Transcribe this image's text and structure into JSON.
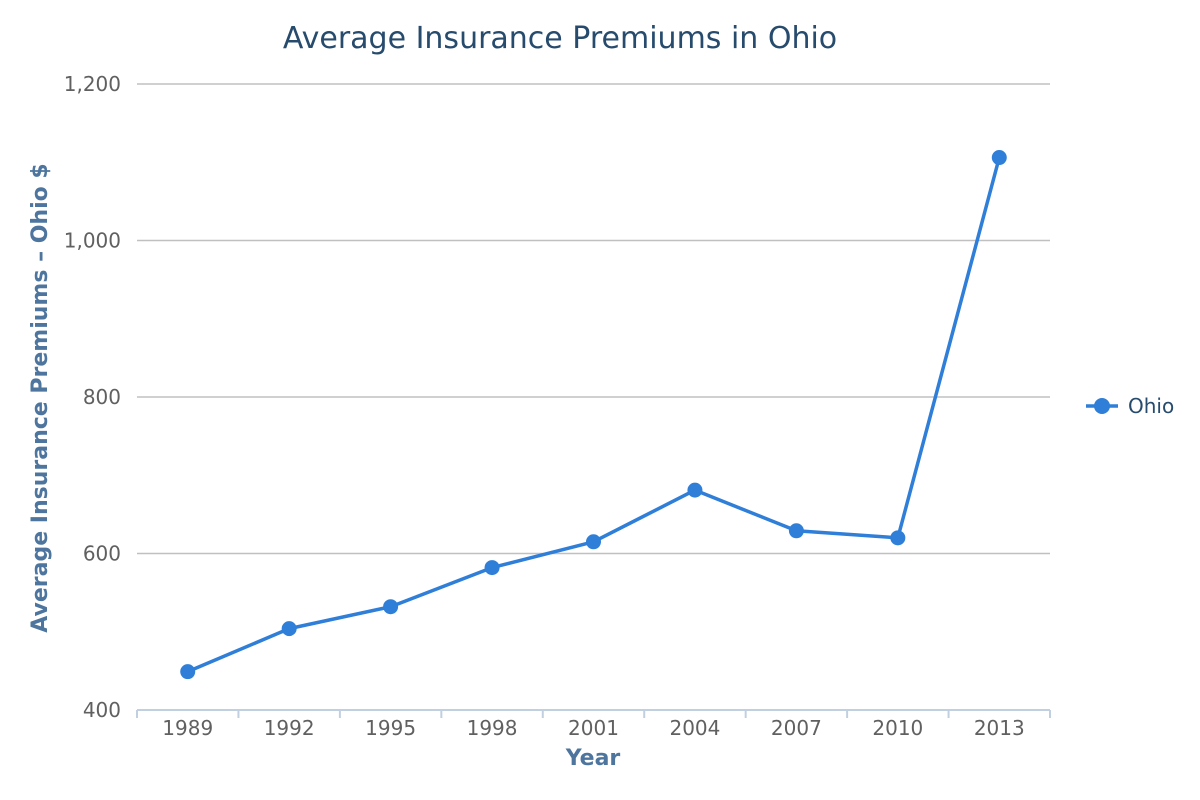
{
  "chart_data": {
    "type": "line",
    "title": "Average Insurance Premiums in Ohio",
    "xlabel": "Year",
    "ylabel": "Average Insurance Premiums – Ohio $",
    "categories": [
      "1989",
      "1992",
      "1995",
      "1998",
      "2001",
      "2004",
      "2007",
      "2010",
      "2013"
    ],
    "ylim": [
      400,
      1200
    ],
    "yticks": [
      400,
      600,
      800,
      1000,
      1200
    ],
    "ytick_labels": [
      "400",
      "600",
      "800",
      "1,000",
      "1,200"
    ],
    "grid": true,
    "legend_position": "right",
    "series": [
      {
        "name": "Ohio",
        "color": "#2f7ed8",
        "values": [
          449,
          504,
          532,
          582,
          615,
          681,
          629,
          620,
          1106
        ]
      }
    ]
  }
}
